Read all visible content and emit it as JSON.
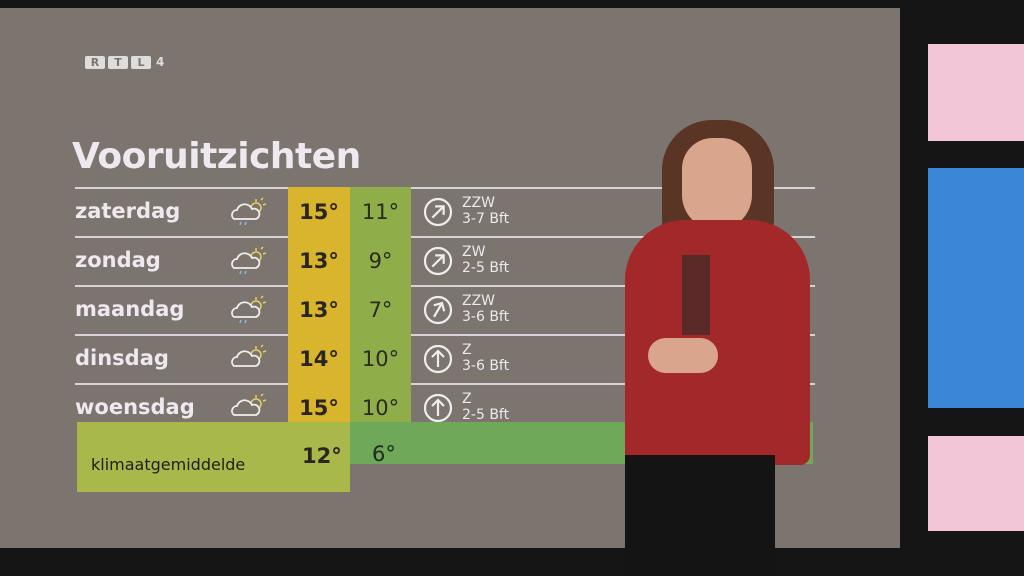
{
  "logo": {
    "letters": [
      "R",
      "T",
      "L"
    ],
    "number": "4"
  },
  "title": "Vooruitzichten",
  "days": [
    {
      "day": "zaterdag",
      "icon": "cloud-sun-rain-icon",
      "max": "15°",
      "min": "11°",
      "wind_dir": "ZZW",
      "wind_force": "3-7 Bft",
      "arrow_deg": 45
    },
    {
      "day": "zondag",
      "icon": "cloud-sun-rain-icon",
      "max": "13°",
      "min": "9°",
      "wind_dir": "ZW",
      "wind_force": "2-5 Bft",
      "arrow_deg": 45
    },
    {
      "day": "maandag",
      "icon": "cloud-sun-rain-icon",
      "max": "13°",
      "min": "7°",
      "wind_dir": "ZZW",
      "wind_force": "3-6 Bft",
      "arrow_deg": 30
    },
    {
      "day": "dinsdag",
      "icon": "cloud-sun-icon",
      "max": "14°",
      "min": "10°",
      "wind_dir": "Z",
      "wind_force": "3-6 Bft",
      "arrow_deg": 0
    },
    {
      "day": "woensdag",
      "icon": "cloud-sun-icon",
      "max": "15°",
      "min": "10°",
      "wind_dir": "Z",
      "wind_force": "2-5 Bft",
      "arrow_deg": 0
    }
  ],
  "climate": {
    "label": "klimaatgemiddelde",
    "max": "12°",
    "min": "6°"
  },
  "colors": {
    "max": "#d9b52e",
    "min": "#8fae4a",
    "background": "#7c746e"
  }
}
